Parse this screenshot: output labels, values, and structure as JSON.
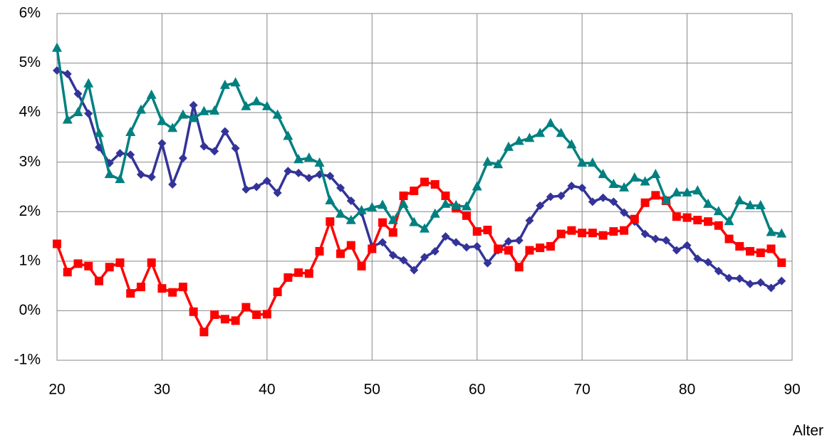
{
  "chart_data": {
    "type": "line",
    "x_label": "Alter",
    "x": [
      20,
      21,
      22,
      23,
      24,
      25,
      26,
      27,
      28,
      29,
      30,
      31,
      32,
      33,
      34,
      35,
      36,
      37,
      38,
      39,
      40,
      41,
      42,
      43,
      44,
      45,
      46,
      47,
      48,
      49,
      50,
      51,
      52,
      53,
      54,
      55,
      56,
      57,
      58,
      59,
      60,
      61,
      62,
      63,
      64,
      65,
      66,
      67,
      68,
      69,
      70,
      71,
      72,
      73,
      74,
      75,
      76,
      77,
      78,
      79,
      80,
      81,
      82,
      83,
      84,
      85,
      86,
      87,
      88,
      89
    ],
    "xlim": [
      20,
      90
    ],
    "xticks": [
      20,
      30,
      40,
      50,
      60,
      70,
      80,
      90
    ],
    "ylim": [
      -1,
      6
    ],
    "yticks": [
      {
        "value": -1,
        "label": "-1%"
      },
      {
        "value": 0,
        "label": "0%"
      },
      {
        "value": 1,
        "label": "1%"
      },
      {
        "value": 2,
        "label": "2%"
      },
      {
        "value": 3,
        "label": "3%"
      },
      {
        "value": 4,
        "label": "4%"
      },
      {
        "value": 5,
        "label": "5%"
      },
      {
        "value": 6,
        "label": "6%"
      }
    ],
    "grid": true,
    "series": [
      {
        "color": "#333399",
        "marker": "diamond",
        "values": [
          4.85,
          4.78,
          4.38,
          3.98,
          3.3,
          2.98,
          3.18,
          3.15,
          2.75,
          2.7,
          3.38,
          2.55,
          3.08,
          4.15,
          3.32,
          3.22,
          3.62,
          3.28,
          2.45,
          2.5,
          2.62,
          2.38,
          2.82,
          2.78,
          2.68,
          2.75,
          2.72,
          2.48,
          2.22,
          1.98,
          1.3,
          1.38,
          1.12,
          1.02,
          0.82,
          1.08,
          1.2,
          1.5,
          1.38,
          1.28,
          1.3,
          0.96,
          1.22,
          1.4,
          1.42,
          1.82,
          2.12,
          2.3,
          2.32,
          2.52,
          2.48,
          2.2,
          2.28,
          2.2,
          1.98,
          1.8,
          1.55,
          1.45,
          1.42,
          1.22,
          1.32,
          1.05,
          0.98,
          0.8,
          0.66,
          0.65,
          0.54,
          0.57,
          0.46,
          0.6
        ]
      },
      {
        "color": "#ff0000",
        "marker": "square",
        "values": [
          1.35,
          0.78,
          0.95,
          0.9,
          0.6,
          0.88,
          0.97,
          0.35,
          0.48,
          0.97,
          0.45,
          0.37,
          0.48,
          -0.02,
          -0.43,
          -0.08,
          -0.17,
          -0.2,
          0.07,
          -0.08,
          -0.07,
          0.38,
          0.67,
          0.77,
          0.75,
          1.2,
          1.8,
          1.15,
          1.32,
          0.9,
          1.25,
          1.78,
          1.58,
          2.32,
          2.42,
          2.6,
          2.55,
          2.32,
          2.07,
          1.92,
          1.6,
          1.63,
          1.25,
          1.22,
          0.88,
          1.22,
          1.27,
          1.3,
          1.55,
          1.62,
          1.57,
          1.57,
          1.52,
          1.6,
          1.62,
          1.85,
          2.18,
          2.33,
          2.22,
          1.9,
          1.88,
          1.83,
          1.8,
          1.72,
          1.45,
          1.3,
          1.2,
          1.17,
          1.25,
          0.97
        ]
      },
      {
        "color": "#008080",
        "marker": "triangle",
        "values": [
          5.3,
          3.85,
          4.0,
          4.58,
          3.58,
          2.75,
          2.65,
          3.6,
          4.05,
          4.35,
          3.82,
          3.68,
          3.95,
          3.88,
          4.02,
          4.03,
          4.55,
          4.6,
          4.12,
          4.22,
          4.12,
          3.95,
          3.52,
          3.05,
          3.08,
          2.98,
          2.22,
          1.95,
          1.82,
          2.02,
          2.08,
          2.13,
          1.82,
          2.15,
          1.78,
          1.65,
          1.95,
          2.15,
          2.12,
          2.1,
          2.5,
          3.0,
          2.95,
          3.3,
          3.42,
          3.48,
          3.58,
          3.78,
          3.58,
          3.35,
          2.98,
          2.98,
          2.75,
          2.55,
          2.48,
          2.68,
          2.6,
          2.75,
          2.22,
          2.38,
          2.38,
          2.42,
          2.15,
          2.0,
          1.8,
          2.22,
          2.12,
          2.12,
          1.58,
          1.55
        ]
      }
    ]
  }
}
